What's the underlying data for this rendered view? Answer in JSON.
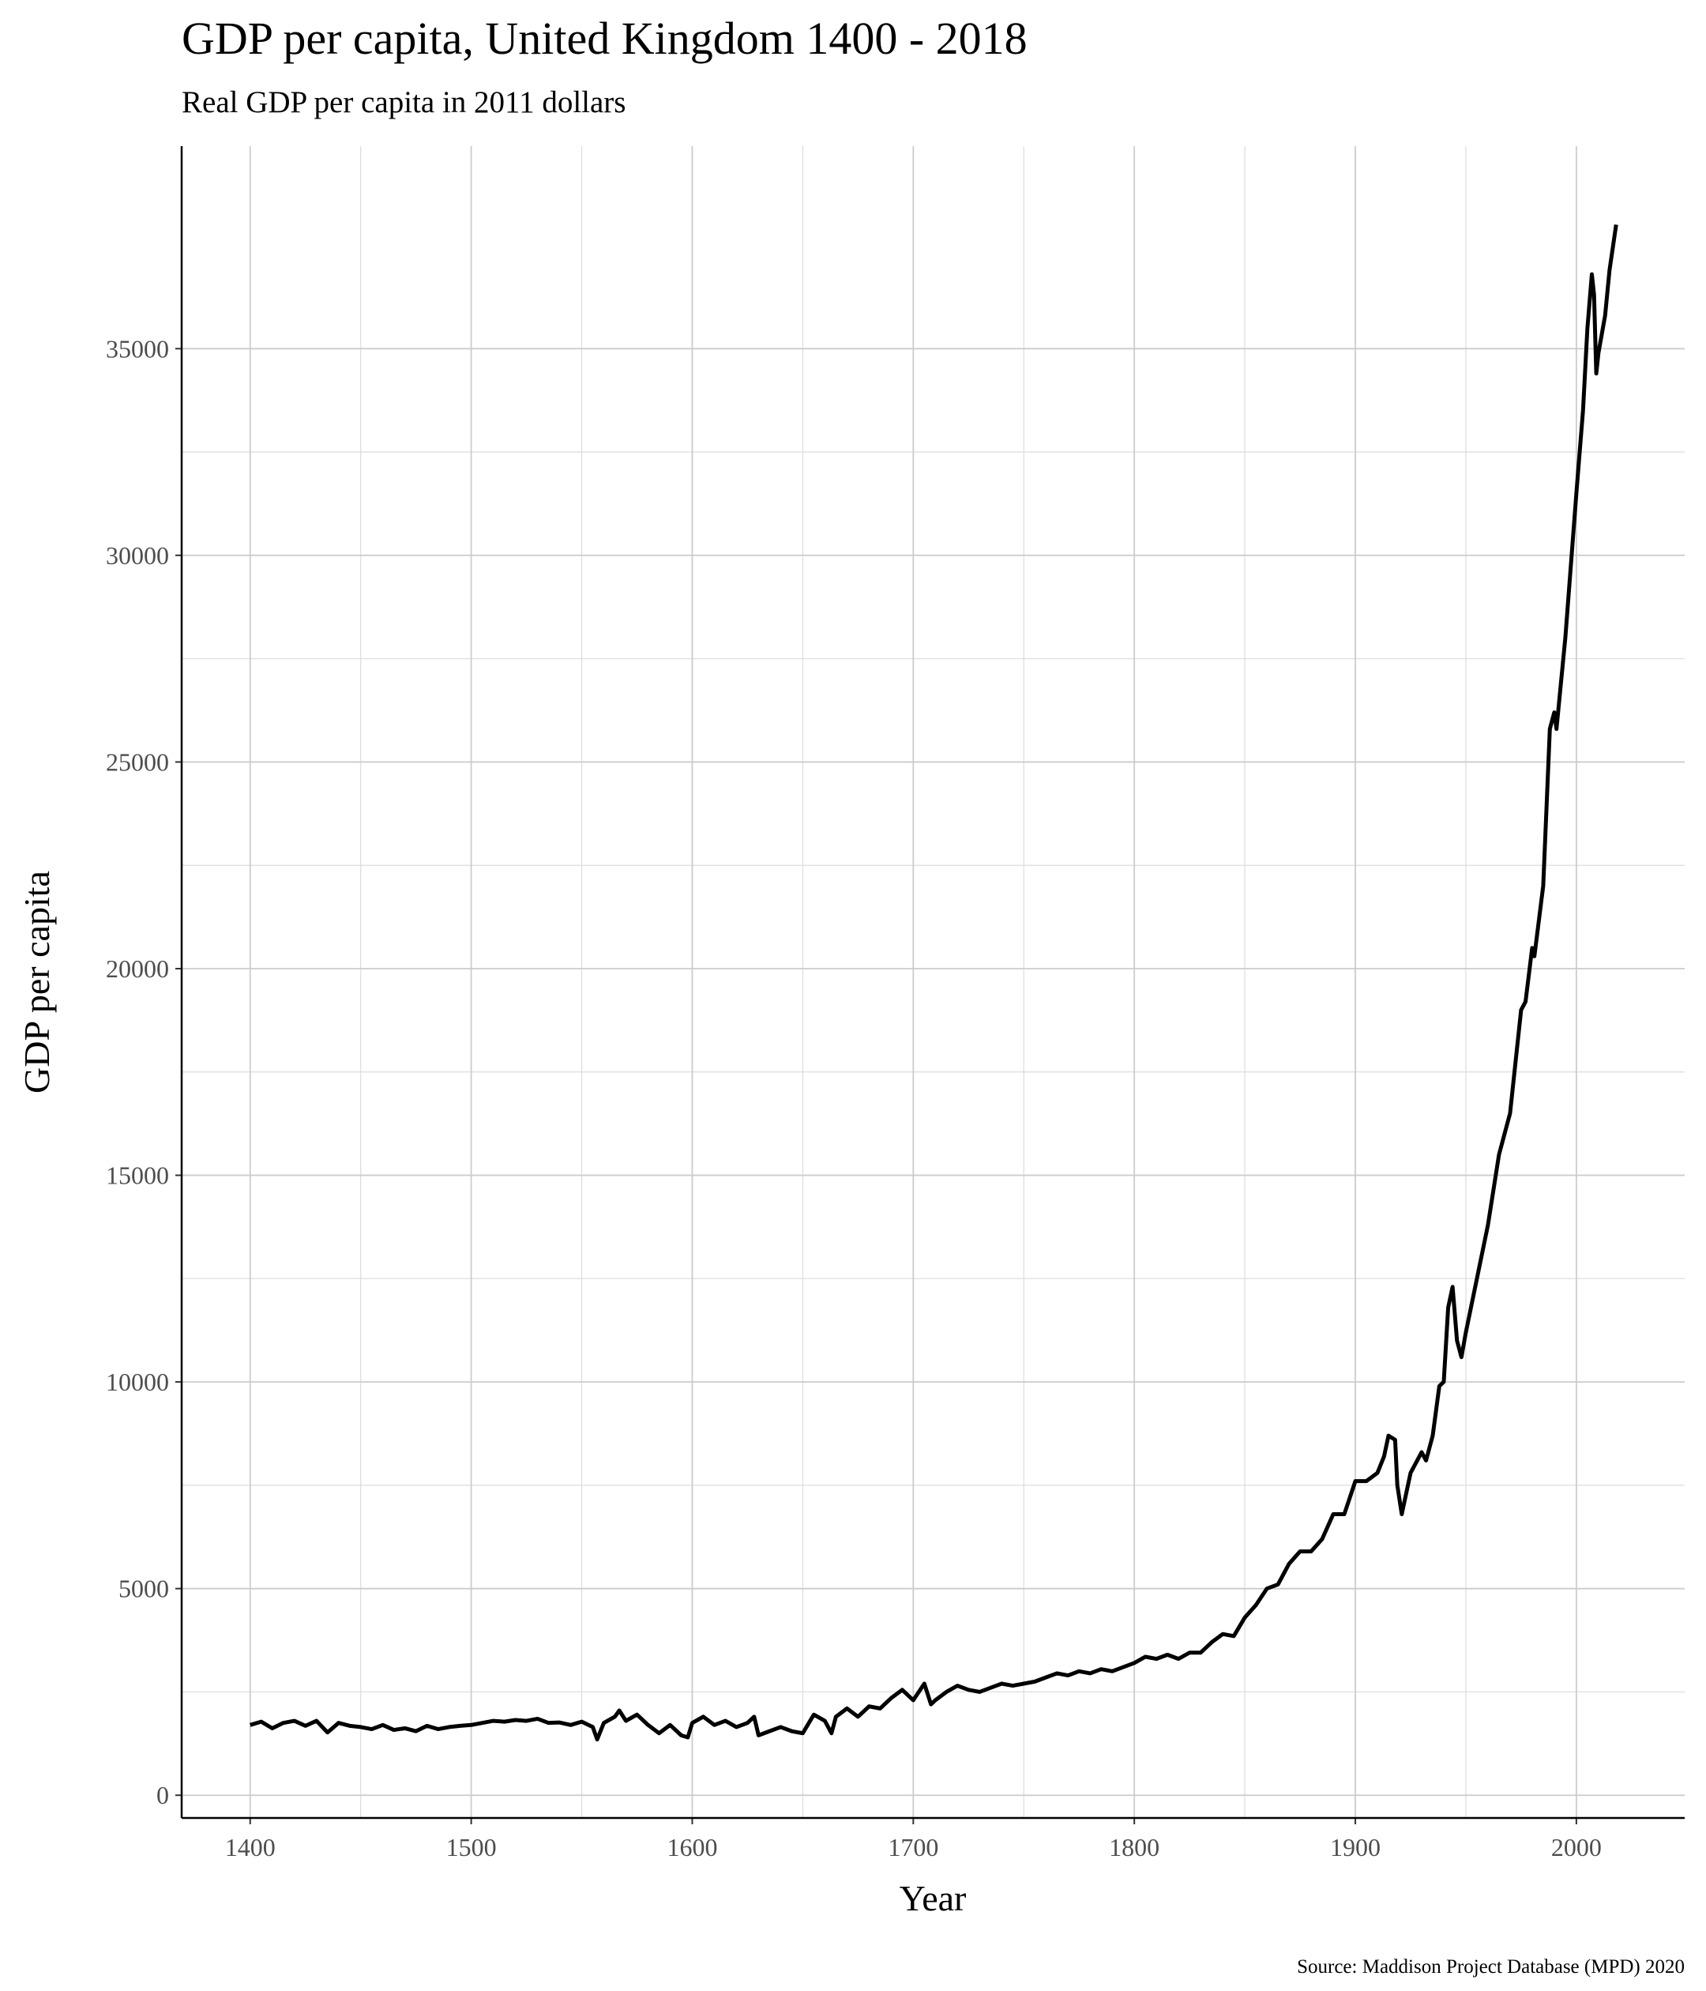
{
  "chart_data": {
    "type": "line",
    "title": "GDP per capita, United Kingdom 1400 - 2018",
    "subtitle": "Real GDP per capita in 2011 dollars",
    "x_label": "Year",
    "y_label": "GDP per capita",
    "source": "Source: Maddison Project Database (MPD) 2020",
    "x": [
      1400,
      1405,
      1410,
      1415,
      1420,
      1425,
      1430,
      1435,
      1440,
      1445,
      1450,
      1455,
      1460,
      1465,
      1470,
      1475,
      1480,
      1485,
      1490,
      1495,
      1500,
      1505,
      1510,
      1515,
      1520,
      1525,
      1530,
      1535,
      1540,
      1545,
      1550,
      1555,
      1557,
      1560,
      1565,
      1567,
      1570,
      1575,
      1580,
      1585,
      1590,
      1595,
      1598,
      1600,
      1605,
      1610,
      1615,
      1620,
      1625,
      1628,
      1630,
      1635,
      1640,
      1645,
      1650,
      1655,
      1660,
      1663,
      1665,
      1670,
      1675,
      1680,
      1685,
      1690,
      1695,
      1700,
      1705,
      1708,
      1710,
      1715,
      1720,
      1725,
      1730,
      1735,
      1740,
      1745,
      1750,
      1755,
      1760,
      1765,
      1770,
      1775,
      1780,
      1785,
      1790,
      1795,
      1800,
      1805,
      1810,
      1815,
      1820,
      1825,
      1830,
      1835,
      1840,
      1845,
      1850,
      1855,
      1860,
      1865,
      1870,
      1875,
      1880,
      1885,
      1890,
      1895,
      1900,
      1905,
      1910,
      1913,
      1915,
      1918,
      1919,
      1921,
      1925,
      1930,
      1932,
      1935,
      1938,
      1940,
      1942,
      1944,
      1946,
      1948,
      1950,
      1955,
      1960,
      1965,
      1970,
      1973,
      1975,
      1977,
      1980,
      1981,
      1985,
      1988,
      1990,
      1991,
      1995,
      2000,
      2003,
      2005,
      2007,
      2008,
      2009,
      2010,
      2013,
      2015,
      2018
    ],
    "series": [
      {
        "name": "GDP per capita",
        "color": "#000000",
        "values": [
          1700,
          1780,
          1620,
          1750,
          1800,
          1680,
          1800,
          1520,
          1750,
          1680,
          1650,
          1600,
          1700,
          1580,
          1620,
          1550,
          1680,
          1600,
          1650,
          1680,
          1700,
          1750,
          1800,
          1780,
          1820,
          1800,
          1850,
          1750,
          1760,
          1700,
          1780,
          1650,
          1350,
          1750,
          1900,
          2050,
          1800,
          1950,
          1700,
          1500,
          1700,
          1450,
          1400,
          1750,
          1900,
          1700,
          1800,
          1650,
          1750,
          1900,
          1450,
          1550,
          1650,
          1550,
          1500,
          1950,
          1800,
          1500,
          1900,
          2100,
          1900,
          2150,
          2100,
          2350,
          2550,
          2300,
          2700,
          2200,
          2300,
          2500,
          2650,
          2550,
          2500,
          2600,
          2700,
          2650,
          2700,
          2750,
          2850,
          2950,
          2900,
          3000,
          2950,
          3050,
          3000,
          3100,
          3200,
          3350,
          3300,
          3400,
          3300,
          3450,
          3450,
          3700,
          3900,
          3850,
          4300,
          4600,
          5000,
          5100,
          5600,
          5900,
          5900,
          6200,
          6800,
          6800,
          7600,
          7600,
          7800,
          8200,
          8700,
          8600,
          7500,
          6800,
          7800,
          8300,
          8100,
          8700,
          9900,
          10000,
          11800,
          12300,
          11000,
          10600,
          11200,
          12500,
          13800,
          15500,
          16500,
          18000,
          19000,
          19200,
          20500,
          20300,
          22000,
          25800,
          26200,
          25800,
          28000,
          31500,
          33500,
          35500,
          36800,
          36300,
          34400,
          34900,
          35800,
          36900,
          38000
        ]
      }
    ],
    "xlim": [
      1369,
      2049
    ],
    "ylim": [
      -550,
      39900
    ],
    "xticks": [
      1400,
      1500,
      1600,
      1700,
      1800,
      1900,
      2000
    ],
    "yticks": [
      0,
      5000,
      10000,
      15000,
      20000,
      25000,
      30000,
      35000
    ],
    "grid": true
  }
}
